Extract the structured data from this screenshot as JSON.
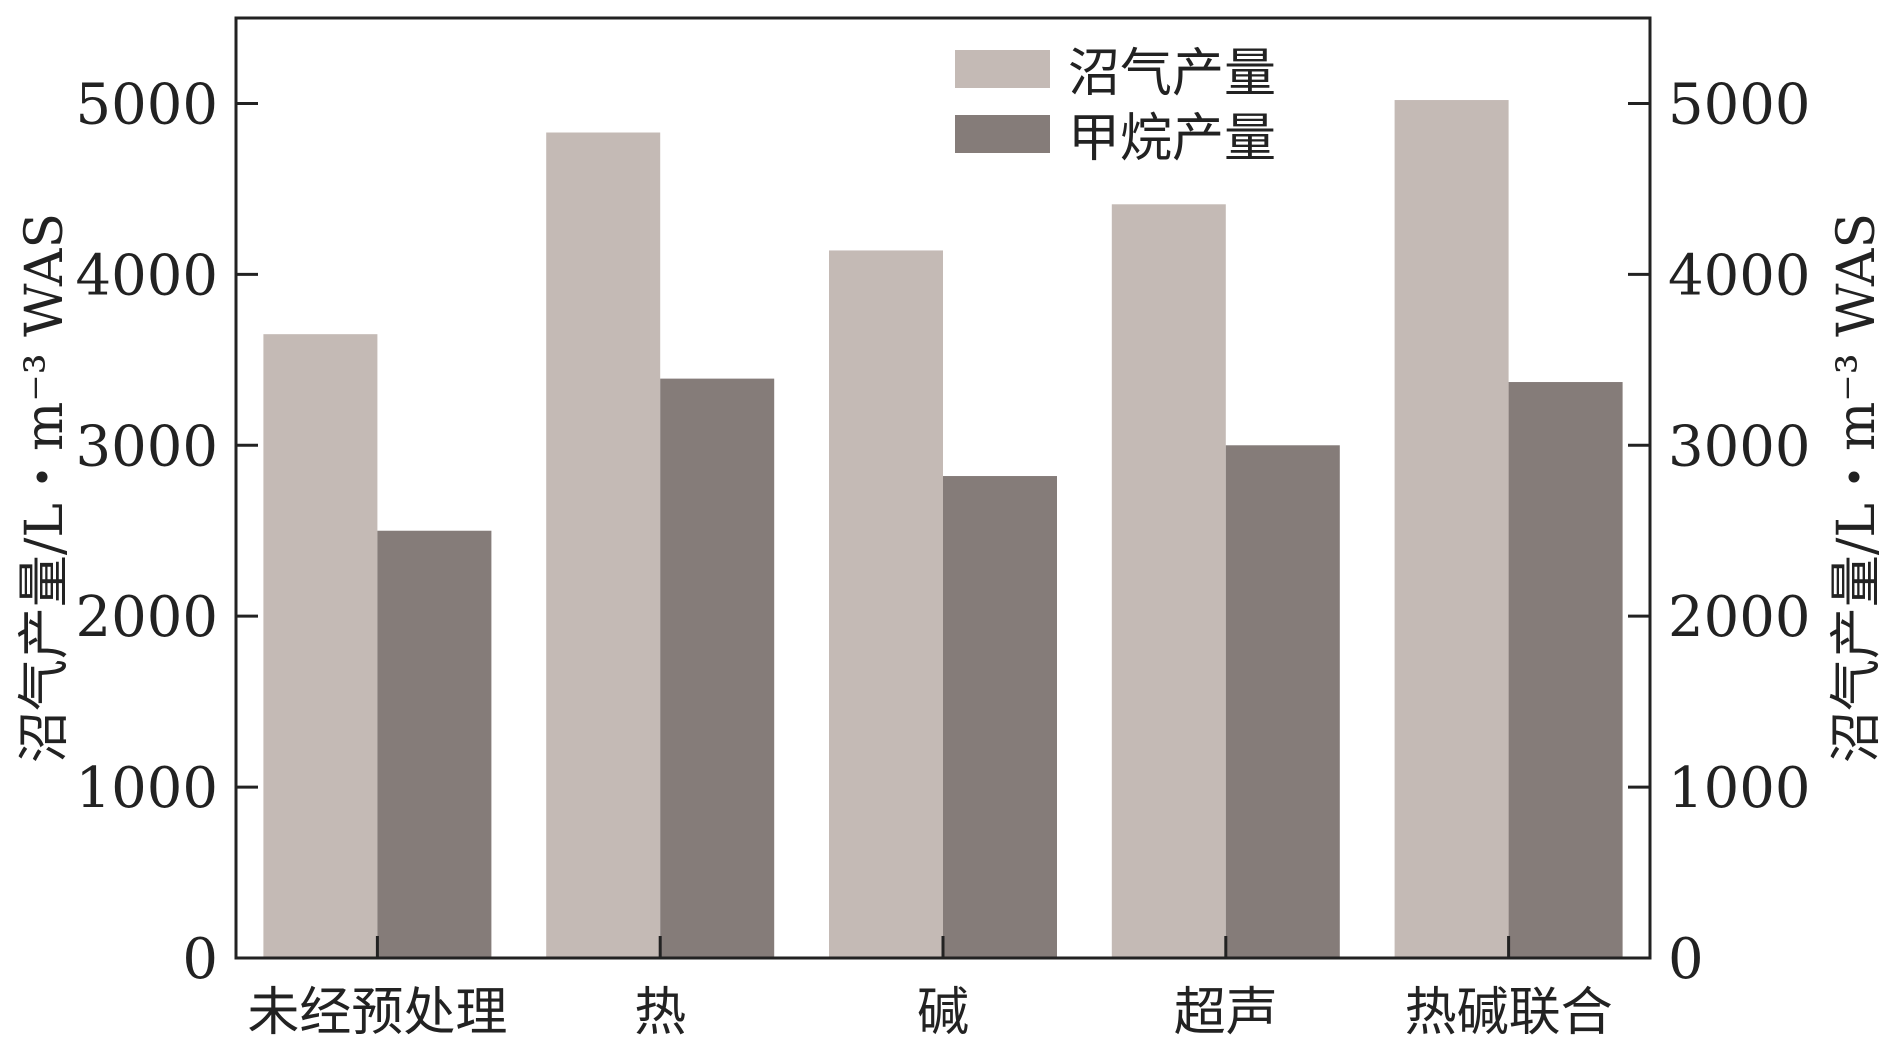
{
  "chart_data": {
    "type": "bar",
    "title": "",
    "xlabel": "",
    "ylabel": "沼气产量/L・m⁻³ WAS",
    "ylabel_right": "沼气产量/L・m⁻³ WAS",
    "ylim": [
      0,
      5500
    ],
    "yticks": [
      0,
      1000,
      2000,
      3000,
      4000,
      5000
    ],
    "categories": [
      "未经预处理",
      "热",
      "碱",
      "超声",
      "热碱联合"
    ],
    "series": [
      {
        "name": "沼气产量",
        "color": "#c4bab5",
        "values": [
          3650,
          4830,
          4140,
          4410,
          5020
        ]
      },
      {
        "name": "甲烷产量",
        "color": "#857c79",
        "values": [
          2500,
          3390,
          2820,
          3000,
          3370
        ]
      }
    ],
    "legend": "top-center",
    "grid": false
  }
}
